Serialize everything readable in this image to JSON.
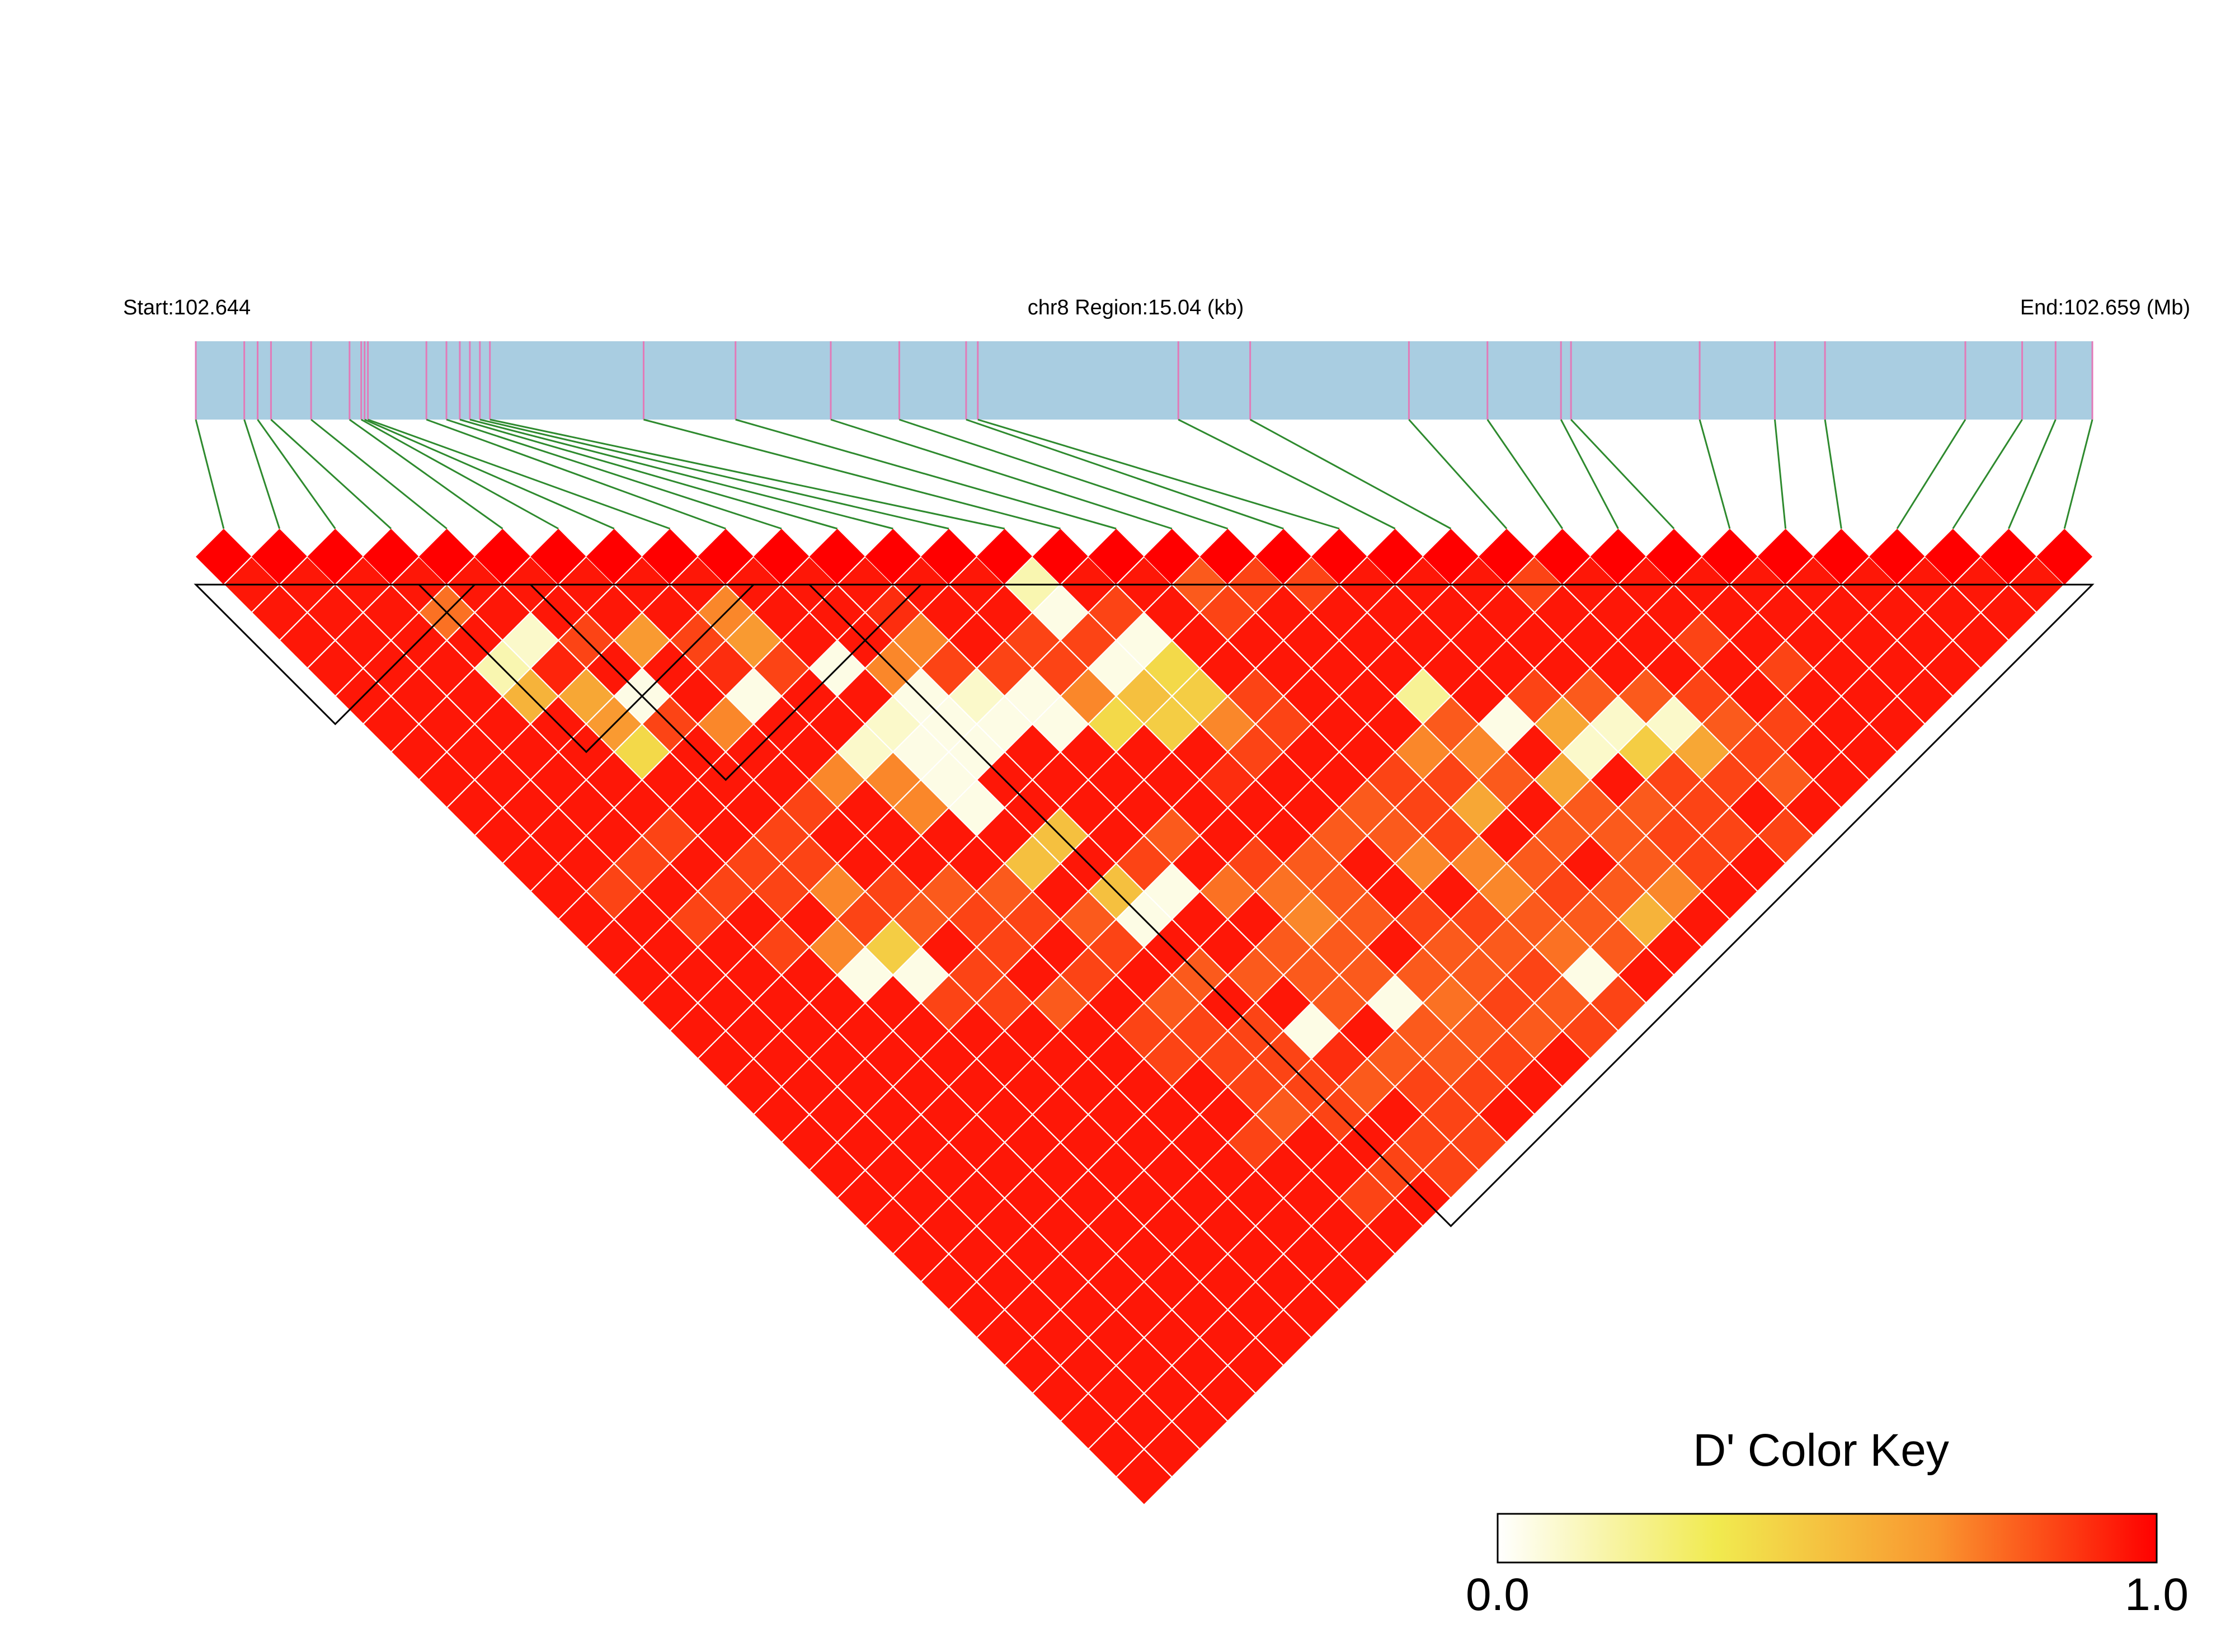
{
  "chart_data": {
    "type": "heatmap",
    "subtype": "linkage-disequilibrium-triangle",
    "region_start_label": "Start:102.644",
    "region_label": "chr8 Region:15.04 (kb)",
    "region_end_label": "End:102.659 (Mb)",
    "num_snps": 34,
    "snp_bp_offsets": [
      0,
      290,
      370,
      450,
      690,
      920,
      990,
      1010,
      1030,
      1380,
      1500,
      1580,
      1640,
      1700,
      1760,
      2680,
      3230,
      3800,
      4210,
      4610,
      4680,
      5880,
      6310,
      7260,
      7730,
      8170,
      8230,
      9000,
      9450,
      9750,
      10590,
      10930,
      11130,
      11350
    ],
    "snp_bp_span": 11350,
    "cell_scale": {
      "min": 0.0,
      "max": 1.0
    },
    "background_value": 0.95,
    "low_cells": [
      [
        4,
        6,
        0.75
      ],
      [
        7,
        10,
        0.65
      ],
      [
        12,
        14,
        0.9
      ],
      [
        8,
        12,
        0.9
      ],
      [
        5,
        9,
        0.92
      ],
      [
        15,
        17,
        0.05
      ],
      [
        15,
        16,
        0.15
      ],
      [
        16,
        18,
        0.85
      ],
      [
        13,
        17,
        0.85
      ],
      [
        14,
        18,
        0.85
      ],
      [
        12,
        16,
        0.85
      ],
      [
        4,
        8,
        0.15
      ],
      [
        5,
        8,
        0.1
      ],
      [
        4,
        9,
        0.55
      ],
      [
        5,
        10,
        0.6
      ],
      [
        5,
        11,
        0.65
      ],
      [
        6,
        9,
        0.85
      ],
      [
        8,
        13,
        0.05
      ],
      [
        7,
        13,
        0.7
      ],
      [
        9,
        12,
        0.65
      ],
      [
        8,
        11,
        0.85
      ],
      [
        9,
        11,
        0.7
      ],
      [
        10,
        14,
        0.05
      ],
      [
        11,
        15,
        0.7
      ],
      [
        12,
        15,
        0.7
      ],
      [
        9,
        13,
        0.85
      ],
      [
        6,
        11,
        0.05
      ],
      [
        5,
        12,
        0.4
      ],
      [
        6,
        12,
        0.85
      ],
      [
        9,
        16,
        0.1
      ],
      [
        10,
        16,
        0.1
      ],
      [
        11,
        17,
        0.05
      ],
      [
        11,
        16,
        0.05
      ],
      [
        10,
        17,
        0.05
      ],
      [
        12,
        18,
        0.05
      ],
      [
        13,
        18,
        0.05
      ],
      [
        13,
        19,
        0.05
      ],
      [
        12,
        17,
        0.1
      ],
      [
        11,
        18,
        0.05
      ],
      [
        10,
        18,
        0.05
      ],
      [
        10,
        19,
        0.05
      ],
      [
        14,
        19,
        0.7
      ],
      [
        15,
        20,
        0.5
      ],
      [
        16,
        20,
        0.4
      ],
      [
        16,
        21,
        0.45
      ],
      [
        15,
        21,
        0.45
      ],
      [
        14,
        20,
        0.4
      ],
      [
        16,
        19,
        0.05
      ],
      [
        15,
        19,
        0.05
      ],
      [
        16,
        22,
        0.7
      ],
      [
        8,
        16,
        0.7
      ],
      [
        9,
        17,
        0.7
      ],
      [
        9,
        18,
        0.7
      ],
      [
        10,
        21,
        0.5
      ],
      [
        20,
        25,
        0.2
      ],
      [
        11,
        21,
        0.5
      ],
      [
        11,
        23,
        0.5
      ],
      [
        12,
        24,
        0.05
      ],
      [
        11,
        24,
        0.05
      ],
      [
        10,
        23,
        0.8
      ],
      [
        12,
        23,
        0.85
      ],
      [
        13,
        23,
        0.8
      ],
      [
        13,
        25,
        0.75
      ],
      [
        14,
        26,
        0.75
      ],
      [
        15,
        26,
        0.8
      ],
      [
        16,
        26,
        0.8
      ],
      [
        14,
        25,
        0.85
      ],
      [
        15,
        27,
        0.8
      ],
      [
        17,
        26,
        0.8
      ],
      [
        17,
        27,
        0.8
      ],
      [
        18,
        29,
        0.7
      ],
      [
        18,
        30,
        0.7
      ],
      [
        17,
        28,
        0.7
      ],
      [
        19,
        30,
        0.8
      ],
      [
        19,
        26,
        0.7
      ],
      [
        21,
        27,
        0.05
      ],
      [
        20,
        26,
        0.8
      ],
      [
        20,
        27,
        0.7
      ],
      [
        22,
        28,
        0.6
      ],
      [
        22,
        29,
        0.1
      ],
      [
        21,
        29,
        0.6
      ],
      [
        18,
        28,
        0.85
      ],
      [
        19,
        28,
        0.6
      ],
      [
        20,
        28,
        0.8
      ],
      [
        20,
        30,
        0.8
      ],
      [
        21,
        31,
        0.8
      ],
      [
        22,
        31,
        0.8
      ],
      [
        23,
        29,
        0.1
      ],
      [
        23,
        30,
        0.45
      ],
      [
        24,
        30,
        0.1
      ],
      [
        25,
        31,
        0.8
      ],
      [
        24,
        31,
        0.6
      ],
      [
        25,
        33,
        0.8
      ],
      [
        14,
        28,
        0.8
      ],
      [
        15,
        28,
        0.8
      ],
      [
        14,
        29,
        0.8
      ],
      [
        15,
        30,
        0.8
      ],
      [
        16,
        30,
        0.8
      ],
      [
        16,
        31,
        0.8
      ],
      [
        17,
        31,
        0.8
      ],
      [
        18,
        31,
        0.8
      ],
      [
        19,
        32,
        0.8
      ],
      [
        20,
        32,
        0.8
      ],
      [
        21,
        32,
        0.8
      ],
      [
        16,
        29,
        0.85
      ],
      [
        17,
        30,
        0.85
      ],
      [
        18,
        32,
        0.75
      ],
      [
        19,
        33,
        0.8
      ],
      [
        17,
        32,
        0.85
      ],
      [
        14,
        27,
        0.7
      ],
      [
        13,
        27,
        0.8
      ],
      [
        12,
        27,
        0.8
      ],
      [
        13,
        28,
        0.8
      ],
      [
        14,
        30,
        0.05
      ],
      [
        13,
        29,
        0.8
      ],
      [
        15,
        31,
        0.75
      ],
      [
        16,
        32,
        0.85
      ],
      [
        15,
        32,
        0.8
      ],
      [
        16,
        33,
        0.8
      ],
      [
        15,
        33,
        0.85
      ],
      [
        14,
        31,
        0.8
      ],
      [
        14,
        32,
        0.8
      ],
      [
        18,
        33,
        0.05
      ],
      [
        17,
        33,
        0.8
      ],
      [
        18,
        34,
        0.85
      ],
      [
        17,
        34,
        0.85
      ],
      [
        21,
        33,
        0.7
      ],
      [
        20,
        33,
        0.55
      ],
      [
        22,
        32,
        0.85
      ],
      [
        22,
        33,
        0.85
      ],
      [
        12,
        29,
        0.05
      ],
      [
        12,
        30,
        0.9
      ],
      [
        13,
        31,
        0.8
      ],
      [
        12,
        31,
        0.8
      ],
      [
        13,
        32,
        0.85
      ],
      [
        8,
        24,
        0.8
      ],
      [
        9,
        24,
        0.85
      ],
      [
        10,
        26,
        0.8
      ],
      [
        11,
        26,
        0.8
      ],
      [
        8,
        22,
        0.85
      ],
      [
        9,
        22,
        0.85
      ],
      [
        10,
        24,
        0.85
      ],
      [
        7,
        20,
        0.8
      ],
      [
        8,
        20,
        0.8
      ],
      [
        9,
        21,
        0.8
      ],
      [
        6,
        19,
        0.85
      ],
      [
        7,
        19,
        0.85
      ],
      [
        8,
        21,
        0.85
      ],
      [
        5,
        19,
        0.7
      ],
      [
        6,
        20,
        0.45
      ],
      [
        5,
        20,
        0.05
      ],
      [
        6,
        21,
        0.05
      ],
      [
        4,
        18,
        0.85
      ],
      [
        5,
        16,
        0.85
      ],
      [
        5,
        17,
        0.85
      ],
      [
        6,
        17,
        0.85
      ],
      [
        6,
        18,
        0.7
      ],
      [
        4,
        16,
        0.85
      ],
      [
        3,
        16,
        0.85
      ],
      [
        7,
        22,
        0.85
      ],
      [
        7,
        23,
        0.85
      ],
      [
        6,
        22,
        0.85
      ],
      [
        9,
        26,
        0.85
      ],
      [
        10,
        27,
        0.85
      ],
      [
        11,
        28,
        0.85
      ],
      [
        9,
        27,
        0.85
      ],
      [
        10,
        28,
        0.85
      ],
      [
        11,
        29,
        0.85
      ],
      [
        10,
        29,
        0.85
      ],
      [
        11,
        30,
        0.85
      ],
      [
        10,
        30,
        0.8
      ],
      [
        9,
        30,
        0.85
      ],
      [
        11,
        31,
        0.85
      ],
      [
        13,
        33,
        0.85
      ],
      [
        12,
        33,
        0.85
      ],
      [
        14,
        33,
        0.85
      ],
      [
        18,
        19,
        0.8
      ],
      [
        22,
        27,
        0.85
      ],
      [
        23,
        28,
        0.8
      ],
      [
        24,
        29,
        0.8
      ],
      [
        25,
        30,
        0.85
      ],
      [
        26,
        32,
        0.85
      ],
      [
        23,
        32,
        0.85
      ],
      [
        24,
        32,
        0.85
      ],
      [
        25,
        32,
        0.85
      ],
      [
        23,
        31,
        0.85
      ],
      [
        19,
        31,
        0.85
      ],
      [
        21,
        30,
        0.8
      ],
      [
        18,
        26,
        0.85
      ],
      [
        18,
        27,
        0.85
      ],
      [
        19,
        27,
        0.85
      ],
      [
        15,
        18,
        0.85
      ],
      [
        14,
        17,
        0.85
      ],
      [
        6,
        16,
        0.85
      ],
      [
        7,
        16,
        0.85
      ],
      [
        3,
        14,
        0.85
      ],
      [
        4,
        14,
        0.85
      ],
      [
        2,
        14,
        0.85
      ],
      [
        24,
        25,
        0.85
      ],
      [
        26,
        29,
        0.85
      ],
      [
        27,
        31,
        0.85
      ],
      [
        24,
        34,
        0.85
      ],
      [
        23,
        33,
        0.85
      ],
      [
        12,
        34,
        0.85
      ],
      [
        13,
        34,
        0.85
      ],
      [
        11,
        33,
        0.85
      ],
      [
        10,
        33,
        0.85
      ],
      [
        20,
        21,
        0.85
      ],
      [
        18,
        20,
        0.85
      ],
      [
        19,
        20,
        0.85
      ],
      [
        17,
        23,
        0.85
      ],
      [
        16,
        23,
        0.85
      ],
      [
        15,
        23,
        0.9
      ],
      [
        17,
        22,
        0.85
      ]
    ],
    "ld_blocks": [
      [
        0,
        5
      ],
      [
        4,
        10
      ],
      [
        6,
        13
      ],
      [
        11,
        34
      ]
    ],
    "legend": {
      "title": "D' Color Key",
      "min_label": "0.0",
      "max_label": "1.0",
      "gradient_stops": [
        "#ffffff",
        "#f1ea4f",
        "#f9962f",
        "#ff0000"
      ]
    }
  },
  "colors": {
    "chromosome_bar": "#a9cde1",
    "snp_tick": "#e27ab8",
    "connector_line": "#2e8a2e",
    "cell_high": "#ff0000",
    "grid_line": "#ffffff",
    "block_outline": "#000000"
  }
}
